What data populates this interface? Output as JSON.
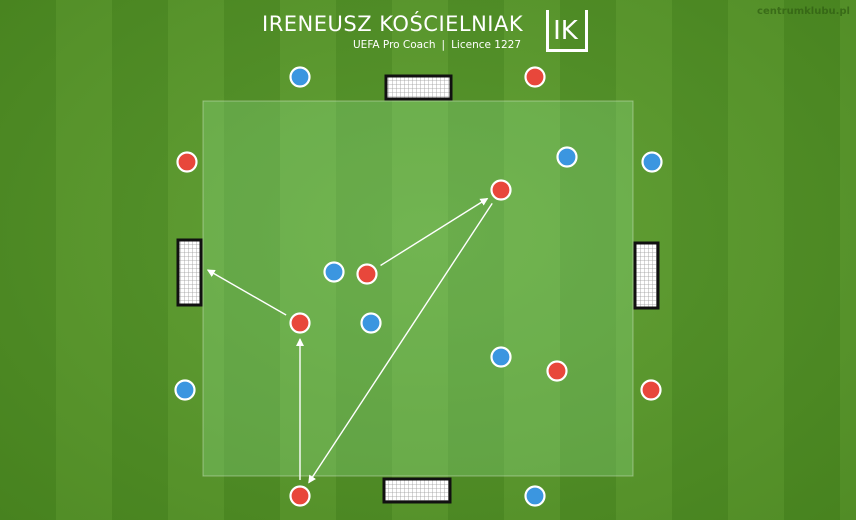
{
  "header": {
    "coach_name": "IRENEUSZ KOŚCIELNIAK",
    "role": "UEFA Pro Coach",
    "separator": "|",
    "licence": "Licence 1227",
    "logo_text": "IK"
  },
  "watermark": "centrumklubu.pl",
  "colors": {
    "team_red": "#e8473b",
    "team_blue": "#3b96e0",
    "field_zone": "rgba(150,230,150,0.28)",
    "arrow": "#ffffff"
  },
  "players": {
    "red": [
      {
        "id": "r1",
        "role": "outside"
      },
      {
        "id": "r2",
        "role": "outside"
      },
      {
        "id": "r3",
        "role": "inside"
      },
      {
        "id": "r4",
        "role": "inside"
      },
      {
        "id": "r5",
        "role": "inside"
      },
      {
        "id": "r6",
        "role": "inside"
      },
      {
        "id": "r7",
        "role": "outside"
      },
      {
        "id": "r8",
        "role": "outside"
      }
    ],
    "blue": [
      {
        "id": "b1",
        "role": "outside"
      },
      {
        "id": "b2",
        "role": "inside"
      },
      {
        "id": "b3",
        "role": "outside"
      },
      {
        "id": "b4",
        "role": "inside"
      },
      {
        "id": "b5",
        "role": "inside"
      },
      {
        "id": "b6",
        "role": "inside"
      },
      {
        "id": "b7",
        "role": "outside"
      },
      {
        "id": "b8",
        "role": "outside"
      }
    ]
  },
  "passes": [
    {
      "from": "r4",
      "to": "r3"
    },
    {
      "from": "r3",
      "to": "r8"
    },
    {
      "from": "r8",
      "to": "r5"
    },
    {
      "from": "r5",
      "to": "goal-left"
    }
  ],
  "goals": [
    "goal-top",
    "goal-bottom",
    "goal-left",
    "goal-right"
  ]
}
